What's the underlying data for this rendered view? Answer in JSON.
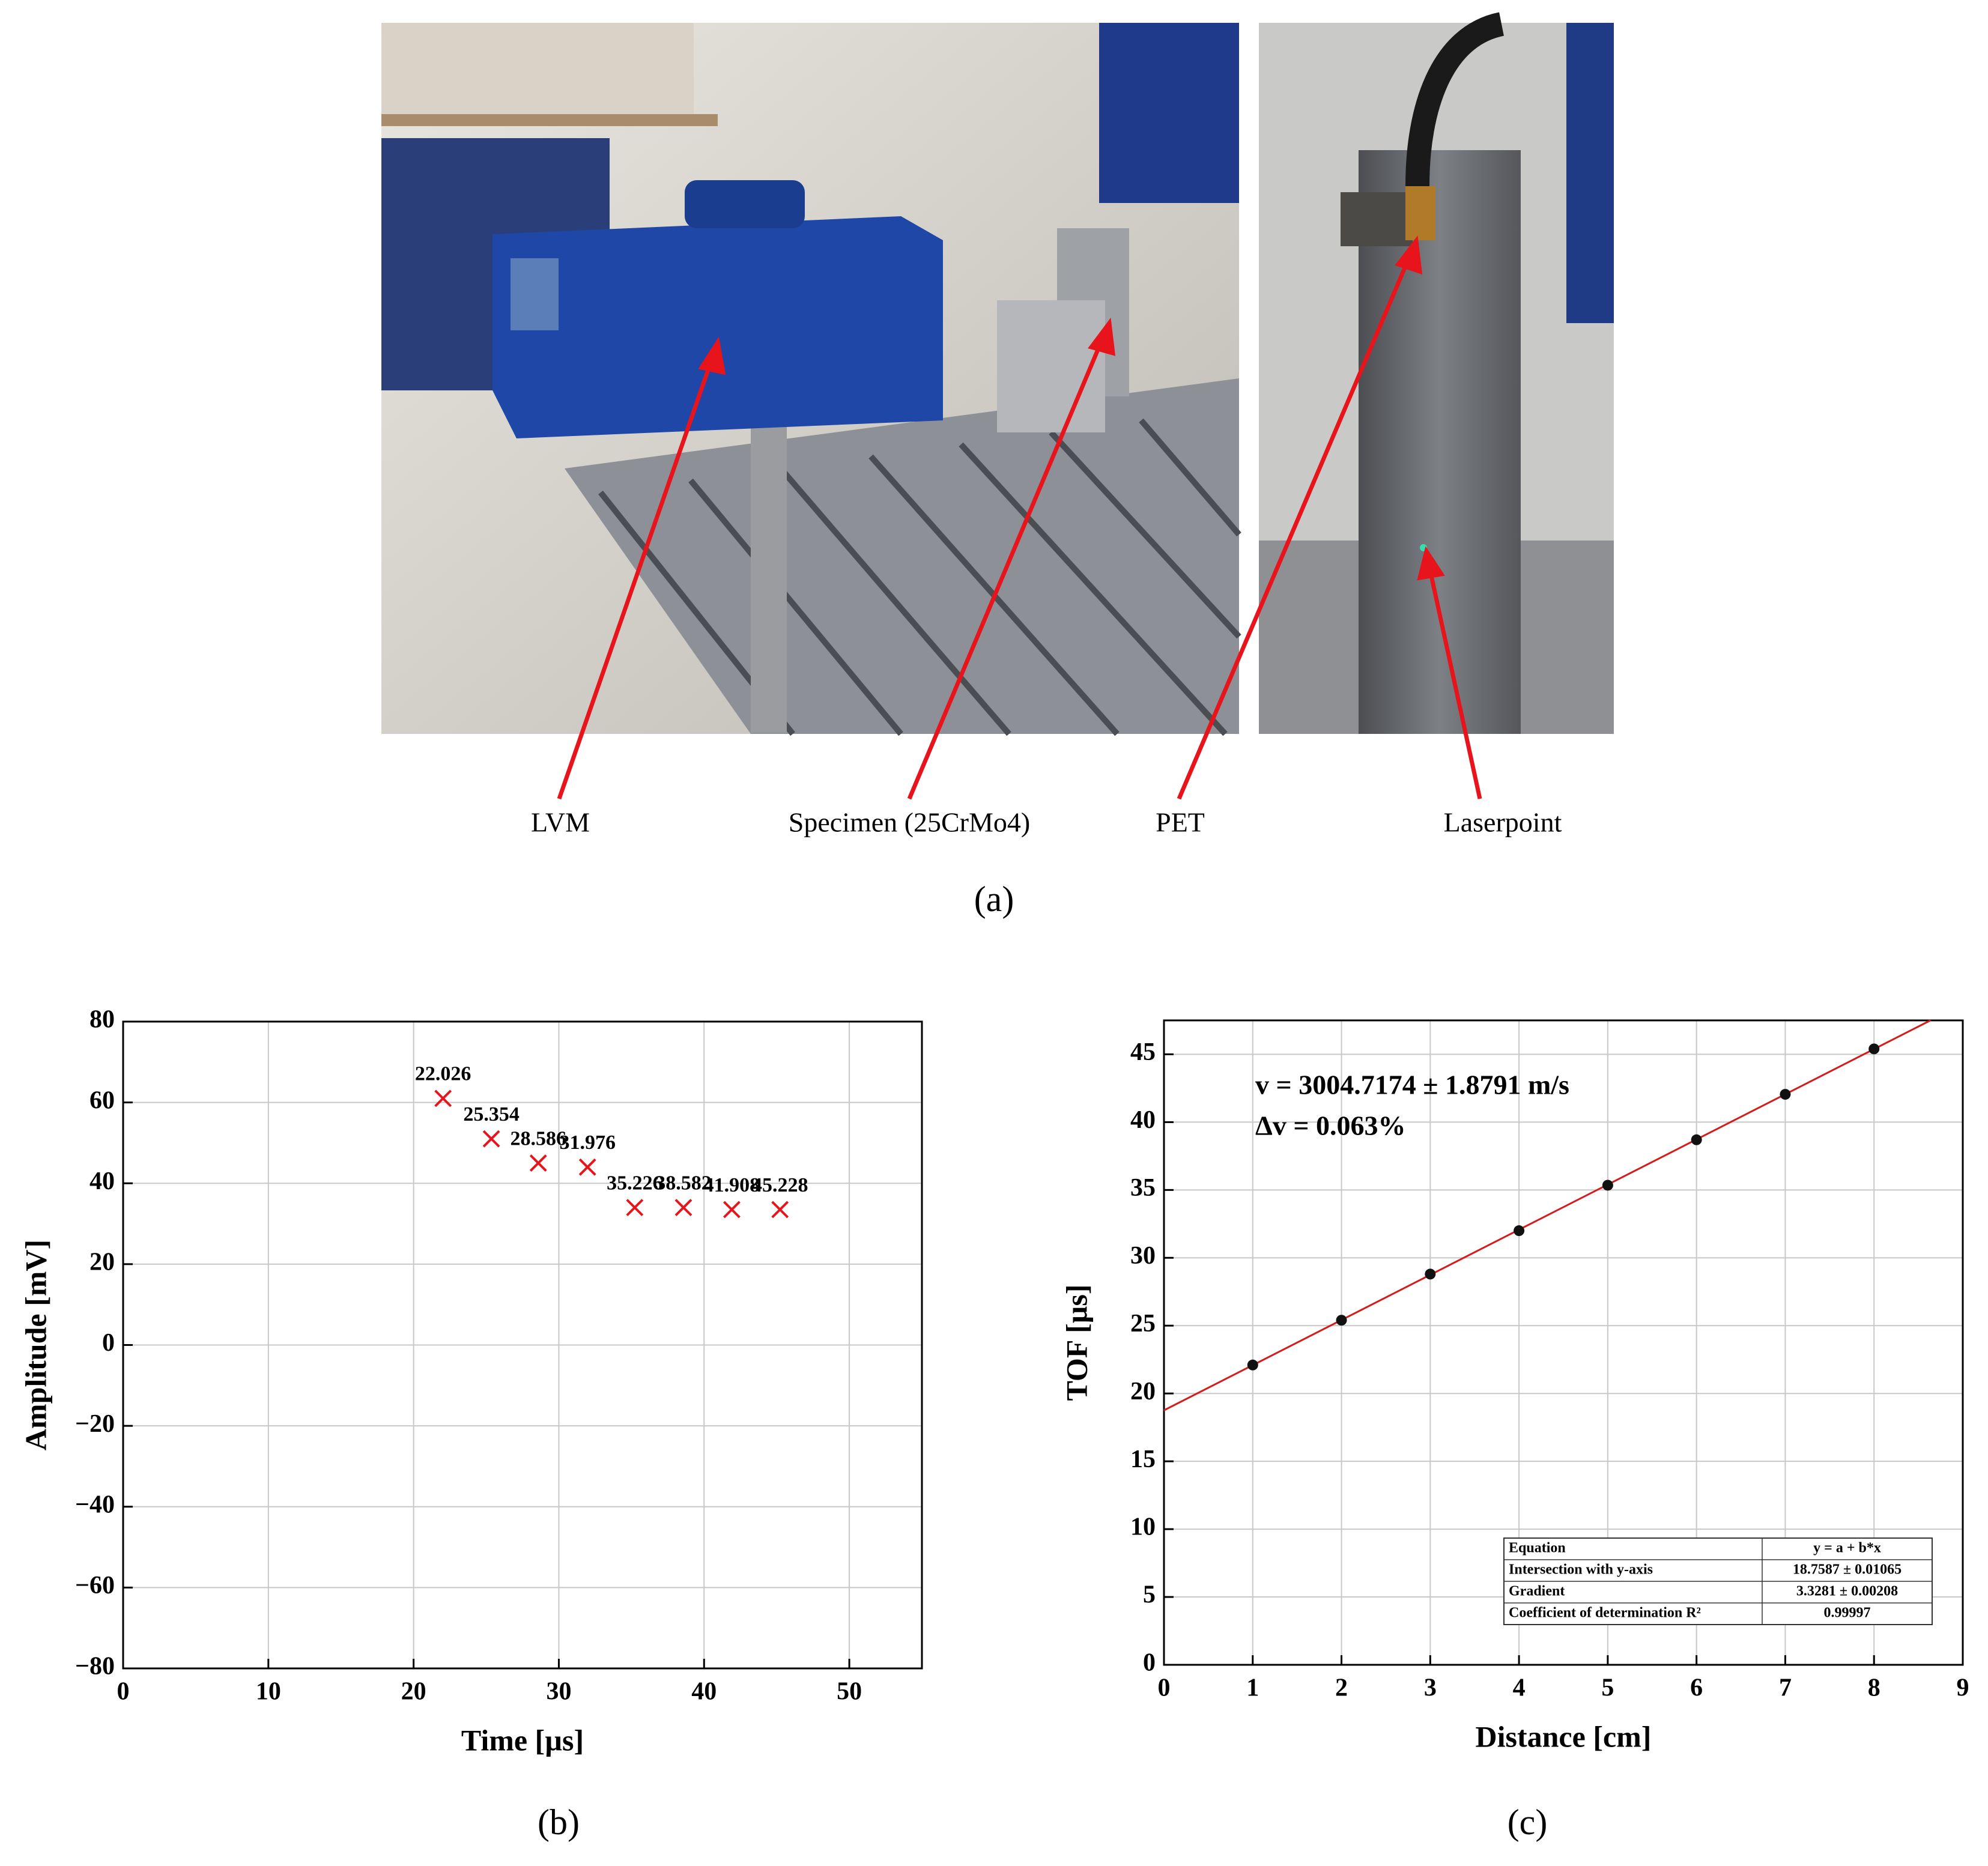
{
  "photo_panel": {
    "labels": [
      "LVM",
      "Specimen (25CrMo4)",
      "PET",
      "Laserpoint"
    ],
    "caption": "(a)"
  },
  "chart_data": [
    {
      "type": "scatter",
      "caption": "(b)",
      "xlabel": "Time [µs]",
      "ylabel": "Amplitude [mV]",
      "x": [
        22.026,
        25.354,
        28.586,
        31.976,
        35.226,
        38.582,
        41.908,
        45.228
      ],
      "values": [
        61,
        51,
        45,
        44,
        34,
        34,
        33.5,
        33.5
      ],
      "marker": "x",
      "color": "#e8141c",
      "point_labels": "x",
      "xlim": [
        0,
        55
      ],
      "xticks": [
        0,
        10,
        20,
        30,
        40,
        50
      ],
      "ylim": [
        -80,
        80
      ],
      "yticks": [
        {
          "value": -80,
          "label": "−80"
        },
        {
          "value": -60,
          "label": "−60"
        },
        {
          "value": -40,
          "label": "−40"
        },
        {
          "value": -20,
          "label": "−20"
        },
        0,
        20,
        40,
        60,
        80
      ],
      "grid": true
    },
    {
      "type": "scatter",
      "caption": "(c)",
      "xlabel": "Distance [cm]",
      "ylabel": "TOF [µs]",
      "x": [
        1,
        2,
        3,
        4,
        5,
        6,
        7,
        8
      ],
      "values": [
        22.1,
        25.4,
        28.8,
        32.0,
        35.35,
        38.7,
        42.05,
        45.4
      ],
      "marker": "o",
      "color": "#111111",
      "fit": {
        "intercept": 18.7587,
        "slope": 3.3281,
        "color": "#d41c1c"
      },
      "annotations": [
        "v = 3004.7174 ± 1.8791 m/s",
        "Δv = 0.063%"
      ],
      "table": [
        [
          "Equation",
          "y = a + b*x"
        ],
        [
          "Intersection with y-axis",
          "18.7587 ± 0.01065"
        ],
        [
          "Gradient",
          "3.3281 ± 0.00208"
        ],
        [
          "Coefficient of determination R²",
          "0.99997"
        ]
      ],
      "xlim": [
        0,
        9
      ],
      "xticks": [
        0,
        1,
        2,
        3,
        4,
        5,
        6,
        7,
        8,
        9
      ],
      "ylim": [
        0,
        47.5
      ],
      "yticks": [
        0,
        5,
        10,
        15,
        20,
        25,
        30,
        35,
        40,
        45
      ],
      "grid": true
    }
  ]
}
